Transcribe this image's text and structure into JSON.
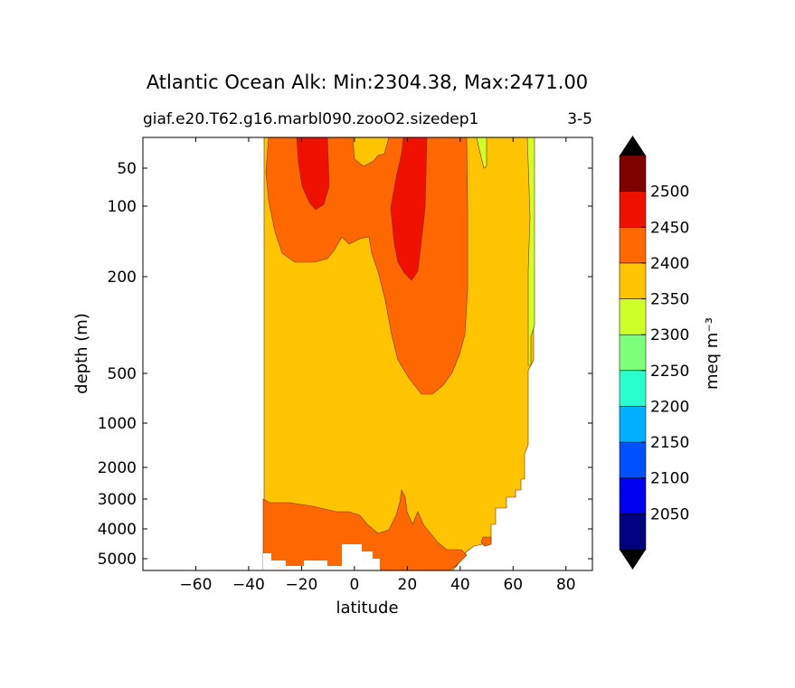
{
  "chart_data": {
    "type": "contour",
    "title": "Atlantic Ocean Alk: Min:2304.38, Max:2471.00",
    "subtitle_left": "giaf.e20.T62.g16.marbl090.zooO2.sizedep1",
    "subtitle_right": "3-5",
    "xlabel": "latitude",
    "ylabel": "depth (m)",
    "xlim": [
      -80,
      90
    ],
    "x_ticks": [
      -60,
      -40,
      -20,
      0,
      20,
      40,
      60,
      80
    ],
    "x_tick_labels": [
      "−60",
      "−40",
      "−20",
      "0",
      "20",
      "40",
      "60",
      "80"
    ],
    "y_ticks": [
      50,
      100,
      200,
      500,
      1000,
      2000,
      3000,
      4000,
      5000
    ],
    "y_tick_labels": [
      "50",
      "100",
      "200",
      "500",
      "1000",
      "2000",
      "3000",
      "4000",
      "5000"
    ],
    "y_inverted": true,
    "colorbar": {
      "label": "meq m⁻³",
      "levels": [
        2000,
        2050,
        2100,
        2150,
        2200,
        2250,
        2300,
        2350,
        2400,
        2450,
        2500,
        2550
      ],
      "tick_labels": [
        "2050",
        "2100",
        "2150",
        "2200",
        "2250",
        "2300",
        "2350",
        "2400",
        "2450",
        "2500"
      ],
      "colors": [
        "#000080",
        "#0000f0",
        "#0050ff",
        "#00b0ff",
        "#29ffce",
        "#7dff7a",
        "#ceff29",
        "#ffc400",
        "#ff6800",
        "#f01000",
        "#800000"
      ],
      "extend": "both",
      "under_color": "#000000",
      "over_color": "#000000"
    },
    "regions": [
      {
        "level": 2350,
        "description": "yellow background field across the section"
      },
      {
        "level": 2300,
        "description": "yellow-green band near 50-68N"
      },
      {
        "level": 2400,
        "description": "orange upper-ocean tongue, 30S to 40N"
      },
      {
        "level": 2450,
        "description": "red cores near 20S and 20N"
      },
      {
        "level": 2400,
        "description": "orange bottom water south of 40N"
      }
    ]
  }
}
